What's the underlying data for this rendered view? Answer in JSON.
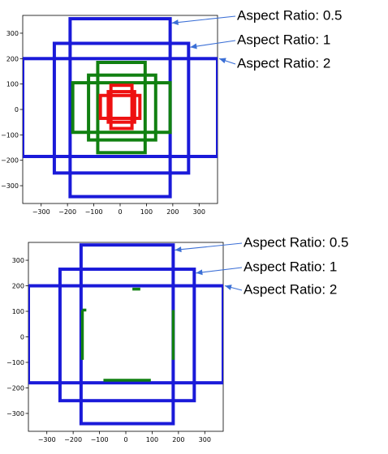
{
  "chart_data": [
    {
      "type": "anchor-boxes",
      "xlim": [
        -370,
        370
      ],
      "ylim": [
        -370,
        370
      ],
      "xticks": [
        -300,
        -200,
        -100,
        0,
        100,
        200,
        300
      ],
      "yticks": [
        -300,
        -200,
        -100,
        0,
        100,
        200,
        300
      ],
      "grid": false,
      "boxes": [
        {
          "x0": -190,
          "x1": 190,
          "y0": -343,
          "y1": 357,
          "color": "#1a1ad9"
        },
        {
          "x0": -250,
          "x1": 260,
          "y0": -250,
          "y1": 260,
          "color": "#1a1ad9"
        },
        {
          "x0": -370,
          "x1": 370,
          "y0": -185,
          "y1": 200,
          "color": "#1a1ad9"
        },
        {
          "x0": -85,
          "x1": 95,
          "y0": -170,
          "y1": 185,
          "color": "#118011"
        },
        {
          "x0": -120,
          "x1": 135,
          "y0": -120,
          "y1": 135,
          "color": "#118011"
        },
        {
          "x0": -180,
          "x1": 190,
          "y0": -90,
          "y1": 105,
          "color": "#118011"
        },
        {
          "x0": -35,
          "x1": 45,
          "y0": -75,
          "y1": 95,
          "color": "#ee1111"
        },
        {
          "x0": -45,
          "x1": 55,
          "y0": -50,
          "y1": 70,
          "color": "#ee1111"
        },
        {
          "x0": -75,
          "x1": 75,
          "y0": -35,
          "y1": 55,
          "color": "#ee1111"
        }
      ],
      "segments": [],
      "annotations": [
        {
          "text": "Aspect Ratio: 0.5",
          "target": [
            190,
            340
          ]
        },
        {
          "text": "Aspect Ratio: 1",
          "target": [
            260,
            245
          ]
        },
        {
          "text": "Aspect Ratio: 2",
          "target": [
            370,
            200
          ]
        }
      ]
    },
    {
      "type": "anchor-boxes",
      "xlim": [
        -370,
        370
      ],
      "ylim": [
        -370,
        370
      ],
      "xticks": [
        -300,
        -200,
        -100,
        0,
        100,
        200,
        300
      ],
      "yticks": [
        -300,
        -200,
        -100,
        0,
        100,
        200,
        300
      ],
      "grid": false,
      "boxes": [
        {
          "x0": -170,
          "x1": 180,
          "y0": -340,
          "y1": 360,
          "color": "#1a1ad9"
        },
        {
          "x0": -250,
          "x1": 260,
          "y0": -250,
          "y1": 265,
          "color": "#1a1ad9"
        },
        {
          "x0": -370,
          "x1": 370,
          "y0": -180,
          "y1": 200,
          "color": "#1a1ad9"
        }
      ],
      "segments": [
        {
          "x0": -165,
          "x1": -165,
          "y0": -90,
          "y1": 105,
          "color": "#118011"
        },
        {
          "x0": -165,
          "x1": -150,
          "y0": 105,
          "y1": 105,
          "color": "#118011"
        },
        {
          "x0": 180,
          "x1": 180,
          "y0": -90,
          "y1": 105,
          "color": "#118011"
        },
        {
          "x0": -85,
          "x1": 95,
          "y0": -170,
          "y1": -170,
          "color": "#118011"
        },
        {
          "x0": 25,
          "x1": 55,
          "y0": 187,
          "y1": 187,
          "color": "#118011"
        }
      ],
      "annotations": [
        {
          "text": "Aspect Ratio: 0.5",
          "target": [
            180,
            340
          ]
        },
        {
          "text": "Aspect Ratio: 1",
          "target": [
            260,
            250
          ]
        },
        {
          "text": "Aspect Ratio: 2",
          "target": [
            370,
            200
          ]
        }
      ]
    }
  ]
}
